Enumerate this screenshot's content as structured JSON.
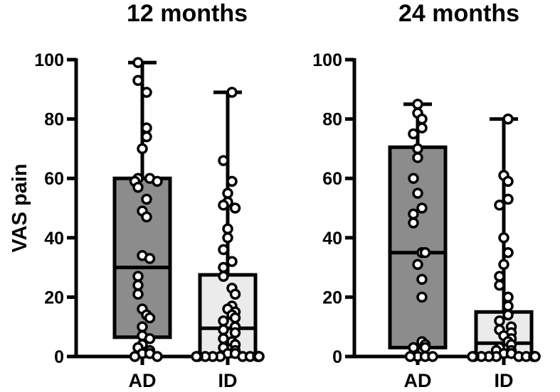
{
  "chart_data": [
    {
      "type": "box",
      "title": "12 months",
      "ylabel": "VAS pain",
      "ylim": [
        0,
        100
      ],
      "yticks": [
        "0",
        "20",
        "40",
        "60",
        "80",
        "100"
      ],
      "categories": [
        "AD",
        "ID"
      ],
      "colors": {
        "AD": "#8c8c8c",
        "ID": "#ebebeb"
      },
      "series": [
        {
          "name": "AD",
          "min": 0,
          "q1": 6.5,
          "median": 30,
          "q3": 60,
          "max": 99,
          "points": [
            99,
            93,
            89,
            77,
            74,
            70,
            60,
            60,
            59,
            59,
            57,
            53,
            49,
            47,
            34,
            33,
            27,
            24,
            21,
            16,
            14,
            13,
            10,
            7,
            6,
            4,
            3,
            2,
            1,
            1,
            0,
            0
          ]
        },
        {
          "name": "ID",
          "min": 0,
          "q1": 0,
          "median": 9.5,
          "q3": 27.5,
          "max": 89,
          "points": [
            89,
            66,
            59,
            55,
            52,
            51,
            50,
            43,
            40,
            36,
            32,
            30,
            27,
            23,
            21,
            17,
            16,
            15,
            14,
            13,
            12,
            10,
            9,
            8,
            6,
            5,
            4,
            3,
            2,
            1,
            1,
            0,
            0,
            0,
            0,
            0,
            0,
            0,
            0,
            0,
            0
          ]
        }
      ]
    },
    {
      "type": "box",
      "title": "24 months",
      "ylabel": "",
      "ylim": [
        0,
        100
      ],
      "yticks": [
        "0",
        "20",
        "40",
        "60",
        "80",
        "100"
      ],
      "categories": [
        "AD",
        "ID"
      ],
      "colors": {
        "AD": "#8c8c8c",
        "ID": "#ebebeb"
      },
      "series": [
        {
          "name": "AD",
          "min": 0,
          "q1": 3,
          "median": 35,
          "q3": 70.5,
          "max": 85,
          "points": [
            85,
            82,
            80,
            77,
            75,
            70,
            67,
            60,
            55,
            50,
            48,
            45,
            35,
            35,
            31,
            26,
            20,
            5,
            4,
            3,
            3,
            0,
            0,
            0,
            0
          ]
        },
        {
          "name": "ID",
          "min": 0,
          "q1": 0,
          "median": 4.5,
          "q3": 15,
          "max": 80,
          "points": [
            80,
            61,
            59,
            53,
            51,
            40,
            35,
            31,
            27,
            24,
            20,
            17,
            14,
            12,
            10,
            9,
            8,
            7,
            6,
            5,
            4,
            3,
            2,
            2,
            1,
            1,
            0,
            0,
            0,
            0,
            0,
            0,
            0,
            0,
            0,
            0
          ]
        }
      ]
    }
  ]
}
